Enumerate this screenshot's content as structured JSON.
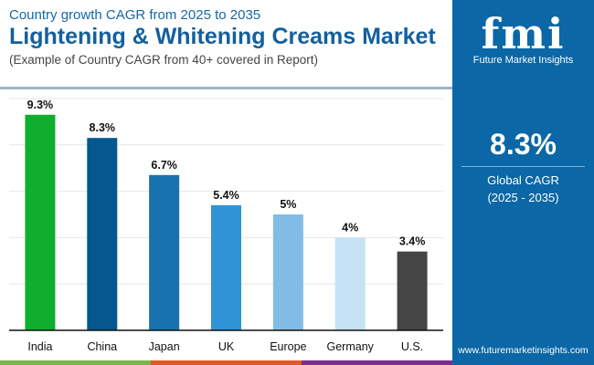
{
  "header": {
    "subtitle": "Country growth CAGR from 2025 to 2035",
    "title": "Lightening & Whitening Creams Market",
    "note": "(Example of Country CAGR from 40+ covered in Report)"
  },
  "panel": {
    "logo": "fmi",
    "brand": "Future Market Insights",
    "value": "8.3%",
    "label": "Global CAGR",
    "period": "(2025 - 2035)",
    "url": "www.futuremarketinsights.com"
  },
  "colors": {
    "panel": "#0b67a6",
    "stripes": [
      "#7ab648",
      "#e05a26",
      "#7b2d8b"
    ]
  },
  "chart_data": {
    "type": "bar",
    "categories": [
      "India",
      "China",
      "Japan",
      "UK",
      "Europe",
      "Germany",
      "U.S."
    ],
    "values": [
      9.3,
      8.3,
      6.7,
      5.4,
      5,
      4,
      3.4
    ],
    "labels": [
      "9.3%",
      "8.3%",
      "6.7%",
      "5.4%",
      "5%",
      "4%",
      "3.4%"
    ],
    "colors": [
      "#0fae2e",
      "#04578f",
      "#1872ae",
      "#2f93d6",
      "#80bce3",
      "#c5e2f4",
      "#454545"
    ],
    "ylim": [
      0,
      10
    ],
    "grid": true
  }
}
